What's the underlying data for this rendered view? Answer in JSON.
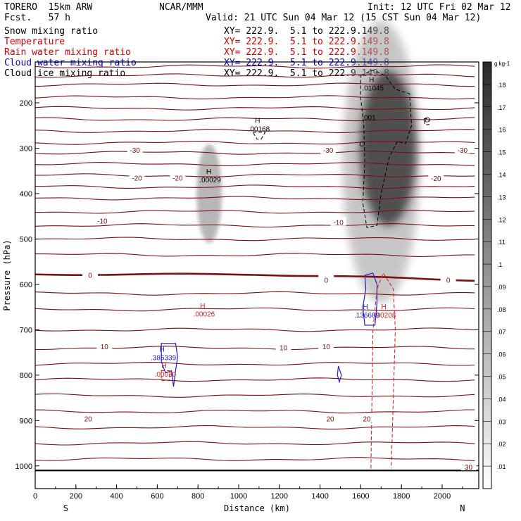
{
  "header": {
    "left_line1": "TORERO  15km ARW",
    "left_line2": "Fcst.   57 h",
    "center": "NCAR/MMM",
    "init": "Init: 12 UTC Fri 02 Mar 12",
    "valid": "Valid: 21 UTC Sun 04 Mar 12 (15 CST Sun 04 Mar 12)"
  },
  "fields": [
    {
      "name": "Snow mixing ratio",
      "xy": "XY= 222.9.  5.1 to 222.9.149.8",
      "color": "#000000"
    },
    {
      "name": "Temperature",
      "xy": "XY= 222.9.  5.1 to 222.9.149.8",
      "color": "#cc0000"
    },
    {
      "name": "Rain water mixing ratio",
      "xy": "XY= 222.9.  5.1 to 222.9.149.8",
      "color": "#cc0000"
    },
    {
      "name": "Cloud water mixing ratio",
      "xy": "XY= 222.9.  5.1 to 222.9.149.8",
      "color": "#0000cc"
    },
    {
      "name": "Cloud ice mixing ratio",
      "xy": "XY= 222.9.  5.1 to 222.9.149.8",
      "color": "#000000"
    }
  ],
  "chart_data": {
    "type": "contour",
    "xlabel": "Distance (km)",
    "ylabel": "Pressure (hPa)",
    "xlim": [
      0,
      2180
    ],
    "ylim": [
      1050,
      110
    ],
    "x_ticks": [
      0,
      200,
      400,
      600,
      800,
      1000,
      1200,
      1400,
      1600,
      1800,
      2000
    ],
    "y_ticks": [
      200,
      300,
      400,
      500,
      600,
      700,
      800,
      900,
      1000
    ],
    "x_end_labels": {
      "left": "S",
      "right": "N"
    },
    "colorbar": {
      "unit": "g kg-1",
      "levels": [
        ".01",
        ".02",
        ".03",
        ".04",
        ".05",
        ".06",
        ".07",
        ".08",
        ".09",
        ".1",
        ".11",
        ".12",
        ".13",
        ".14",
        ".15",
        ".16",
        ".17",
        ".18"
      ]
    },
    "temperature_labels": [
      {
        "text": "-30",
        "x": 490,
        "p": 304
      },
      {
        "text": "-30",
        "x": 1440,
        "p": 304
      },
      {
        "text": "-30",
        "x": 2100,
        "p": 304
      },
      {
        "text": "-20",
        "x": 500,
        "p": 365
      },
      {
        "text": "-20",
        "x": 700,
        "p": 365
      },
      {
        "text": "-20",
        "x": 1970,
        "p": 366
      },
      {
        "text": "-10",
        "x": 330,
        "p": 460
      },
      {
        "text": "-10",
        "x": 1490,
        "p": 463
      },
      {
        "text": "0",
        "x": 270,
        "p": 579
      },
      {
        "text": "0",
        "x": 1430,
        "p": 590
      },
      {
        "text": "0",
        "x": 2030,
        "p": 590
      },
      {
        "text": "10",
        "x": 340,
        "p": 737
      },
      {
        "text": "10",
        "x": 1220,
        "p": 739
      },
      {
        "text": "10",
        "x": 1430,
        "p": 737
      },
      {
        "text": "20",
        "x": 260,
        "p": 896
      },
      {
        "text": "20",
        "x": 1450,
        "p": 896
      },
      {
        "text": "20",
        "x": 1630,
        "p": 896
      },
      {
        "text": "30",
        "x": 2130,
        "p": 1002
      }
    ],
    "maxima_labels": [
      {
        "text": ".01045",
        "x": 1660,
        "p": 170,
        "field": "Cloud ice mixing ratio"
      },
      {
        "text": ".00168",
        "x": 1100,
        "p": 260,
        "field": "Cloud ice mixing ratio"
      },
      {
        "text": ".00029",
        "x": 860,
        "p": 372,
        "field": "Cloud ice mixing ratio"
      },
      {
        "text": ".00026",
        "x": 830,
        "p": 668,
        "field": "Rain water mixing ratio"
      },
      {
        "text": ".385339",
        "x": 630,
        "p": 764,
        "field": "Cloud water mixing ratio"
      },
      {
        "text": ".00030",
        "x": 640,
        "p": 800,
        "field": "Rain water mixing ratio"
      },
      {
        "text": ".136689",
        "x": 1630,
        "p": 670,
        "field": "Cloud water mixing ratio"
      },
      {
        "text": ".00208",
        "x": 1720,
        "p": 670,
        "field": "Rain water mixing ratio"
      }
    ],
    "contour_labels": [
      {
        "text": ".001",
        "x": 1640,
        "p": 238
      },
      {
        "text": "C",
        "x": 1605,
        "p": 296
      },
      {
        "text": "C",
        "x": 1925,
        "p": 243
      }
    ]
  }
}
